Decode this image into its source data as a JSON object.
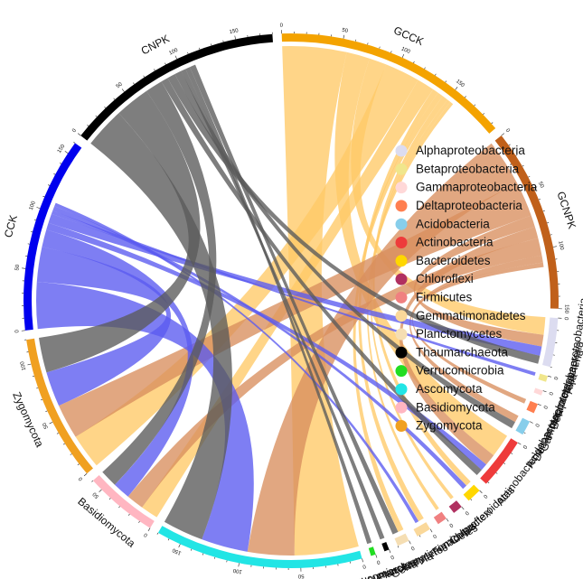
{
  "chart_data": {
    "type": "chord",
    "title": "",
    "groups": [
      "GCCK",
      "GCNPK",
      "CCK",
      "CNPK"
    ],
    "sectors": [
      {
        "name": "GCCK",
        "total": 195,
        "color": "#f4a300"
      },
      {
        "name": "GCNPK",
        "total": 150,
        "color": "#c0601a"
      },
      {
        "name": "Alphaproteobacteria",
        "total": 40,
        "color": "#dcdcf0"
      },
      {
        "name": "Betaproteobacteria",
        "total": 5,
        "color": "#f0e68c"
      },
      {
        "name": "Gammaproteobacteria",
        "total": 4,
        "color": "#ffd8d8"
      },
      {
        "name": "Deltaproteobacteria",
        "total": 8,
        "color": "#ff7f50"
      },
      {
        "name": "Acidobacteria",
        "total": 12,
        "color": "#87ceeb"
      },
      {
        "name": "Actinobacteria",
        "total": 42,
        "color": "#ee3b3b"
      },
      {
        "name": "Bacteroidetes",
        "total": 12,
        "color": "#ffd700"
      },
      {
        "name": "Chloroflexi",
        "total": 8,
        "color": "#b03060"
      },
      {
        "name": "Firmicutes",
        "total": 8,
        "color": "#f08080"
      },
      {
        "name": "Gemmatimonadetes",
        "total": 12,
        "color": "#fad89a"
      },
      {
        "name": "Planctomycetes",
        "total": 10,
        "color": "#f5deb3"
      },
      {
        "name": "Thaumarchaeota",
        "total": 4,
        "color": "#000000"
      },
      {
        "name": "Verrucomicrobia",
        "total": 4,
        "color": "#22dd22"
      },
      {
        "name": "Ascomycota",
        "total": 170,
        "color": "#22e5e5"
      },
      {
        "name": "Basidiomycota",
        "total": 60,
        "color": "#ffb6c1"
      },
      {
        "name": "Zygomycota",
        "total": 120,
        "color": "#f0a020"
      },
      {
        "name": "CCK",
        "total": 160,
        "color": "#0000ee"
      },
      {
        "name": "CNPK",
        "total": 180,
        "color": "#000000"
      }
    ],
    "links": [
      {
        "from": "GCCK",
        "to": "Ascomycota",
        "value": 55
      },
      {
        "from": "GCCK",
        "to": "Actinobacteria",
        "value": 20
      },
      {
        "from": "GCCK",
        "to": "Alphaproteobacteria",
        "value": 15
      },
      {
        "from": "GCCK",
        "to": "Zygomycota",
        "value": 30
      },
      {
        "from": "GCCK",
        "to": "Basidiomycota",
        "value": 15
      },
      {
        "from": "GCCK",
        "to": "Gemmatimonadetes",
        "value": 5
      },
      {
        "from": "GCCK",
        "to": "Planctomycetes",
        "value": 5
      },
      {
        "from": "GCCK",
        "to": "Bacteroidetes",
        "value": 5
      },
      {
        "from": "GCCK",
        "to": "Chloroflexi",
        "value": 3
      },
      {
        "from": "GCCK",
        "to": "Firmicutes",
        "value": 3
      },
      {
        "from": "GCNPK",
        "to": "Ascomycota",
        "value": 40
      },
      {
        "from": "GCNPK",
        "to": "Zygomycota",
        "value": 30
      },
      {
        "from": "GCNPK",
        "to": "Alphaproteobacteria",
        "value": 10
      },
      {
        "from": "GCNPK",
        "to": "Actinobacteria",
        "value": 10
      },
      {
        "from": "GCNPK",
        "to": "Basidiomycota",
        "value": 15
      },
      {
        "from": "GCNPK",
        "to": "Acidobacteria",
        "value": 6
      },
      {
        "from": "GCNPK",
        "to": "Deltaproteobacteria",
        "value": 4
      },
      {
        "from": "CCK",
        "to": "Ascomycota",
        "value": 40
      },
      {
        "from": "CCK",
        "to": "Zygomycota",
        "value": 30
      },
      {
        "from": "CCK",
        "to": "Basidiomycota",
        "value": 15
      },
      {
        "from": "CCK",
        "to": "Actinobacteria",
        "value": 6
      },
      {
        "from": "CCK",
        "to": "Alphaproteobacteria",
        "value": 8
      },
      {
        "from": "CCK",
        "to": "Betaproteobacteria",
        "value": 3
      },
      {
        "from": "CCK",
        "to": "Bacteroidetes",
        "value": 4
      },
      {
        "from": "CCK",
        "to": "Gemmatimonadetes",
        "value": 3
      },
      {
        "from": "CNPK",
        "to": "Ascomycota",
        "value": 35
      },
      {
        "from": "CNPK",
        "to": "Zygomycota",
        "value": 30
      },
      {
        "from": "CNPK",
        "to": "Basidiomycota",
        "value": 15
      },
      {
        "from": "CNPK",
        "to": "Actinobacteria",
        "value": 6
      },
      {
        "from": "CNPK",
        "to": "Alphaproteobacteria",
        "value": 7
      },
      {
        "from": "CNPK",
        "to": "Acidobacteria",
        "value": 6
      },
      {
        "from": "CNPK",
        "to": "Thaumarchaeota",
        "value": 4
      },
      {
        "from": "CNPK",
        "to": "Verrucomicrobia",
        "value": 4
      },
      {
        "from": "CNPK",
        "to": "Planctomycetes",
        "value": 5
      }
    ],
    "legend": {
      "placement": "right",
      "entries": [
        {
          "label": "Alphaproteobacteria",
          "color": "#dcdcf0"
        },
        {
          "label": "Betaproteobacteria",
          "color": "#f0e68c"
        },
        {
          "label": "Gammaproteobacteria",
          "color": "#ffd8d8"
        },
        {
          "label": "Deltaproteobacteria",
          "color": "#ff7f50"
        },
        {
          "label": "Acidobacteria",
          "color": "#87ceeb"
        },
        {
          "label": "Actinobacteria",
          "color": "#ee3b3b"
        },
        {
          "label": "Bacteroidetes",
          "color": "#ffd700"
        },
        {
          "label": "Chloroflexi",
          "color": "#b03060"
        },
        {
          "label": "Firmicutes",
          "color": "#f08080"
        },
        {
          "label": "Gemmatimonadetes",
          "color": "#fad89a"
        },
        {
          "label": "Planctomycetes",
          "color": "#f5deb3"
        },
        {
          "label": "Thaumarchaeota",
          "color": "#000000"
        },
        {
          "label": "Verrucomicrobia",
          "color": "#22dd22"
        },
        {
          "label": "Ascomycota",
          "color": "#22e5e5"
        },
        {
          "label": "Basidiomycota",
          "color": "#ffb6c1"
        },
        {
          "label": "Zygomycota",
          "color": "#f0a020"
        }
      ]
    },
    "link_colors": {
      "GCCK": "#ffc966",
      "GCNPK": "#d98e5e",
      "CCK": "#5a5af0",
      "CNPK": "#5a5a5a"
    },
    "tick_interval": 50
  }
}
